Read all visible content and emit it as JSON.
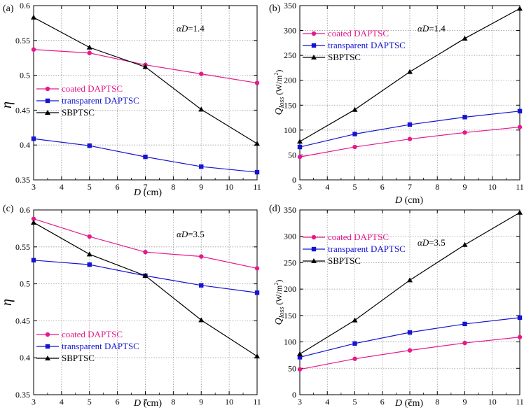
{
  "chart_data": [
    {
      "panel_label": "(a)",
      "type": "line",
      "annotation_prefix": "α",
      "annotation_var": "D",
      "annotation_value": "=1.4",
      "xlabel_var": "D",
      "xlabel_unit": " (cm)",
      "ylabel_var": "η",
      "ylabel_sub": "",
      "ylabel_unit": "",
      "ylabel_sup": "",
      "ylabel_tail": "",
      "xlim": [
        3,
        11
      ],
      "ylim": [
        0.35,
        0.6
      ],
      "x_ticks": [
        3,
        4,
        5,
        6,
        7,
        8,
        9,
        10,
        11
      ],
      "y_ticks": [
        0.35,
        0.4,
        0.45,
        0.5,
        0.55,
        0.6
      ],
      "y_tick_labels": [
        "0.35",
        "0.4",
        "0.45",
        "0.5",
        "0.55",
        "0.6"
      ],
      "legend": "middle-left",
      "series": [
        {
          "name": "coated DAPTSC",
          "color": "#e6198c",
          "marker": "circle",
          "x": [
            3,
            5,
            7,
            9,
            11
          ],
          "y": [
            0.537,
            0.532,
            0.515,
            0.502,
            0.489
          ]
        },
        {
          "name": "transparent DAPTSC",
          "color": "#1414d2",
          "marker": "square",
          "x": [
            3,
            5,
            7,
            9,
            11
          ],
          "y": [
            0.409,
            0.399,
            0.383,
            0.369,
            0.361
          ]
        },
        {
          "name": "SBPTSC",
          "color": "#000000",
          "marker": "triangle",
          "x": [
            3,
            5,
            7,
            9,
            11
          ],
          "y": [
            0.583,
            0.54,
            0.512,
            0.451,
            0.402
          ]
        }
      ]
    },
    {
      "panel_label": "(b)",
      "type": "line",
      "annotation_prefix": "α",
      "annotation_var": "D",
      "annotation_value": "=1.4",
      "xlabel_var": "D",
      "xlabel_unit": " (cm)",
      "ylabel_var": "Q",
      "ylabel_sub": "loss",
      "ylabel_unit": " (W/m",
      "ylabel_sup": "2",
      "ylabel_tail": ")",
      "xlim": [
        3,
        11
      ],
      "ylim": [
        0,
        350
      ],
      "x_ticks": [
        3,
        4,
        5,
        6,
        7,
        8,
        9,
        10,
        11
      ],
      "y_ticks": [
        0,
        50,
        100,
        150,
        200,
        250,
        300,
        350
      ],
      "y_tick_labels": [
        "0",
        "50",
        "100",
        "150",
        "200",
        "250",
        "300",
        "350"
      ],
      "legend": "top-left",
      "series": [
        {
          "name": "coated DAPTSC",
          "color": "#e6198c",
          "marker": "circle",
          "x": [
            3,
            5,
            7,
            9,
            11
          ],
          "y": [
            46,
            66,
            82,
            95,
            106
          ]
        },
        {
          "name": "transparent DAPTSC",
          "color": "#1414d2",
          "marker": "square",
          "x": [
            3,
            5,
            7,
            9,
            11
          ],
          "y": [
            66,
            92,
            111,
            126,
            138
          ]
        },
        {
          "name": "SBPTSC",
          "color": "#000000",
          "marker": "triangle",
          "x": [
            3,
            5,
            7,
            9,
            11
          ],
          "y": [
            77,
            141,
            217,
            284,
            344
          ]
        }
      ]
    },
    {
      "panel_label": "(c)",
      "type": "line",
      "annotation_prefix": "α",
      "annotation_var": "D",
      "annotation_value": "=3.5",
      "xlabel_var": "D",
      "xlabel_unit": " (cm)",
      "ylabel_var": "η",
      "ylabel_sub": "",
      "ylabel_unit": "",
      "ylabel_sup": "",
      "ylabel_tail": "",
      "xlim": [
        3,
        11
      ],
      "ylim": [
        0.35,
        0.6
      ],
      "x_ticks": [
        3,
        4,
        5,
        6,
        7,
        8,
        9,
        10,
        11
      ],
      "y_ticks": [
        0.35,
        0.4,
        0.45,
        0.5,
        0.55,
        0.6
      ],
      "y_tick_labels": [
        "0.35",
        "0.4",
        "0.45",
        "0.5",
        "0.55",
        "0.6"
      ],
      "legend": "bottom-left",
      "series": [
        {
          "name": "coated DAPTSC",
          "color": "#e6198c",
          "marker": "circle",
          "x": [
            3,
            5,
            7,
            9,
            11
          ],
          "y": [
            0.588,
            0.564,
            0.543,
            0.537,
            0.521
          ]
        },
        {
          "name": "transparent DAPTSC",
          "color": "#1414d2",
          "marker": "square",
          "x": [
            3,
            5,
            7,
            9,
            11
          ],
          "y": [
            0.532,
            0.526,
            0.511,
            0.498,
            0.488
          ]
        },
        {
          "name": "SBPTSC",
          "color": "#000000",
          "marker": "triangle",
          "x": [
            3,
            5,
            7,
            9,
            11
          ],
          "y": [
            0.583,
            0.54,
            0.511,
            0.451,
            0.402
          ]
        }
      ]
    },
    {
      "panel_label": "(d)",
      "type": "line",
      "annotation_prefix": "α",
      "annotation_var": "D",
      "annotation_value": "=3.5",
      "xlabel_var": "D",
      "xlabel_unit": " (cm)",
      "ylabel_var": "Q",
      "ylabel_sub": "loss",
      "ylabel_unit": " (W/m",
      "ylabel_sup": "2",
      "ylabel_tail": ")",
      "xlim": [
        3,
        11
      ],
      "ylim": [
        0,
        350
      ],
      "x_ticks": [
        3,
        4,
        5,
        6,
        7,
        8,
        9,
        10,
        11
      ],
      "y_ticks": [
        0,
        50,
        100,
        150,
        200,
        250,
        300,
        350
      ],
      "y_tick_labels": [
        "0",
        "50",
        "100",
        "150",
        "200",
        "250",
        "300",
        "350"
      ],
      "legend": "top-left",
      "series": [
        {
          "name": "coated DAPTSC",
          "color": "#e6198c",
          "marker": "circle",
          "x": [
            3,
            5,
            7,
            9,
            11
          ],
          "y": [
            48,
            68,
            84,
            98,
            109
          ]
        },
        {
          "name": "transparent DAPTSC",
          "color": "#1414d2",
          "marker": "square",
          "x": [
            3,
            5,
            7,
            9,
            11
          ],
          "y": [
            71,
            97,
            118,
            134,
            146
          ]
        },
        {
          "name": "SBPTSC",
          "color": "#000000",
          "marker": "triangle",
          "x": [
            3,
            5,
            7,
            9,
            11
          ],
          "y": [
            77,
            141,
            217,
            284,
            345
          ]
        }
      ]
    }
  ]
}
